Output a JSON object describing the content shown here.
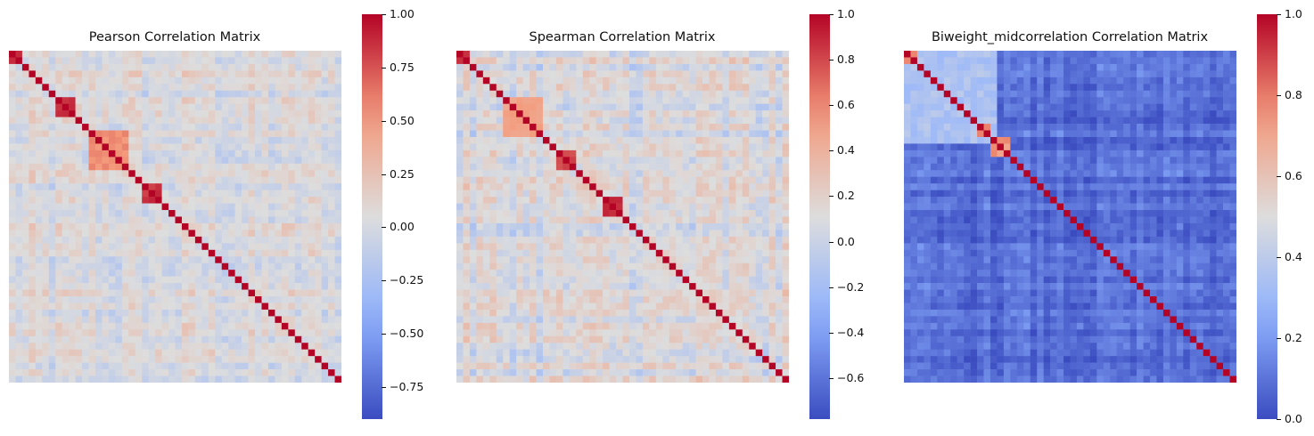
{
  "chart_data": [
    {
      "type": "heatmap",
      "title": "Pearson Correlation Matrix",
      "colormap": "coolwarm",
      "vmin": -0.9,
      "vmax": 1.0,
      "colorbar_ticks": [
        "1.00",
        "0.75",
        "0.50",
        "0.25",
        "0.00",
        "−0.25",
        "−0.50",
        "−0.75"
      ],
      "colorbar_tick_values": [
        1.0,
        0.75,
        0.5,
        0.25,
        0.0,
        -0.25,
        -0.5,
        -0.75
      ],
      "n_vars_sampled": 50,
      "baseline": 0.02,
      "noise": 0.18,
      "blocks": [
        {
          "start": 0,
          "end": 1,
          "value": 0.9
        },
        {
          "start": 7,
          "end": 9,
          "value": 0.85
        },
        {
          "start": 12,
          "end": 17,
          "value": 0.55
        },
        {
          "start": 20,
          "end": 22,
          "value": 0.85
        }
      ],
      "diagonal": 1.0
    },
    {
      "type": "heatmap",
      "title": "Spearman Correlation Matrix",
      "colormap": "coolwarm",
      "vmin": -0.78,
      "vmax": 1.0,
      "colorbar_ticks": [
        "1.0",
        "0.8",
        "0.6",
        "0.4",
        "0.2",
        "0.0",
        "−0.2",
        "−0.4",
        "−0.6"
      ],
      "colorbar_tick_values": [
        1.0,
        0.8,
        0.6,
        0.4,
        0.2,
        0.0,
        -0.2,
        -0.4,
        -0.6
      ],
      "n_vars_sampled": 50,
      "baseline": 0.08,
      "noise": 0.2,
      "blocks": [
        {
          "start": 0,
          "end": 1,
          "value": 0.85
        },
        {
          "start": 7,
          "end": 12,
          "value": 0.5
        },
        {
          "start": 15,
          "end": 17,
          "value": 0.8
        },
        {
          "start": 22,
          "end": 24,
          "value": 0.9
        }
      ],
      "diagonal": 1.0
    },
    {
      "type": "heatmap",
      "title": "Biweight_midcorrelation Correlation Matrix",
      "colormap": "coolwarm",
      "vmin": 0.0,
      "vmax": 1.0,
      "colorbar_ticks": [
        "1.0",
        "0.8",
        "0.6",
        "0.4",
        "0.2",
        "0.0"
      ],
      "colorbar_tick_values": [
        1.0,
        0.8,
        0.6,
        0.4,
        0.2,
        0.0
      ],
      "n_vars_sampled": 50,
      "baseline": 0.08,
      "noise": 0.08,
      "blocks": [
        {
          "start": 0,
          "end": 13,
          "value": 0.35
        },
        {
          "start": 0,
          "end": 1,
          "value": 0.75
        },
        {
          "start": 11,
          "end": 12,
          "value": 0.8
        },
        {
          "start": 13,
          "end": 15,
          "value": 0.75
        }
      ],
      "diagonal": 1.0
    }
  ]
}
